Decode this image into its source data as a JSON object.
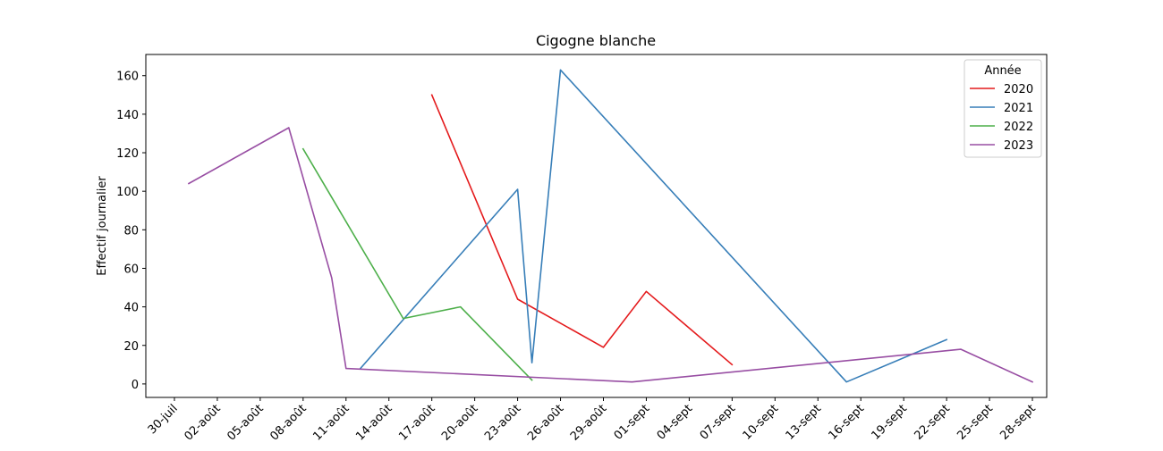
{
  "chart_data": {
    "type": "line",
    "title": "Cigogne blanche",
    "xlabel": "",
    "ylabel": "Effectif journalier",
    "xlim": [
      "2023-07-28",
      "2023-09-29"
    ],
    "ylim": [
      -7,
      171
    ],
    "x_ticks": [
      {
        "date": "2023-07-30",
        "label": "30-juil"
      },
      {
        "date": "2023-08-02",
        "label": "02-août"
      },
      {
        "date": "2023-08-05",
        "label": "05-août"
      },
      {
        "date": "2023-08-08",
        "label": "08-août"
      },
      {
        "date": "2023-08-11",
        "label": "11-août"
      },
      {
        "date": "2023-08-14",
        "label": "14-août"
      },
      {
        "date": "2023-08-17",
        "label": "17-août"
      },
      {
        "date": "2023-08-20",
        "label": "20-août"
      },
      {
        "date": "2023-08-23",
        "label": "23-août"
      },
      {
        "date": "2023-08-26",
        "label": "26-août"
      },
      {
        "date": "2023-08-29",
        "label": "29-août"
      },
      {
        "date": "2023-09-01",
        "label": "01-sept"
      },
      {
        "date": "2023-09-04",
        "label": "04-sept"
      },
      {
        "date": "2023-09-07",
        "label": "07-sept"
      },
      {
        "date": "2023-09-10",
        "label": "10-sept"
      },
      {
        "date": "2023-09-13",
        "label": "13-sept"
      },
      {
        "date": "2023-09-16",
        "label": "16-sept"
      },
      {
        "date": "2023-09-19",
        "label": "19-sept"
      },
      {
        "date": "2023-09-22",
        "label": "22-sept"
      },
      {
        "date": "2023-09-25",
        "label": "25-sept"
      },
      {
        "date": "2023-09-28",
        "label": "28-sept"
      }
    ],
    "y_ticks": [
      0,
      20,
      40,
      60,
      80,
      100,
      120,
      140,
      160
    ],
    "grid": false,
    "legend": {
      "title": "Année",
      "placement": "top-right"
    },
    "series": [
      {
        "name": "2020",
        "color": "#e41a1c",
        "points": [
          {
            "x": "2023-08-17",
            "y": 150
          },
          {
            "x": "2023-08-23",
            "y": 44
          },
          {
            "x": "2023-08-29",
            "y": 19
          },
          {
            "x": "2023-09-01",
            "y": 48
          },
          {
            "x": "2023-09-07",
            "y": 10
          }
        ]
      },
      {
        "name": "2021",
        "color": "#377eb8",
        "points": [
          {
            "x": "2023-08-12",
            "y": 8
          },
          {
            "x": "2023-08-23",
            "y": 101
          },
          {
            "x": "2023-08-24",
            "y": 11
          },
          {
            "x": "2023-08-26",
            "y": 163
          },
          {
            "x": "2023-09-15",
            "y": 1
          },
          {
            "x": "2023-09-22",
            "y": 23
          }
        ]
      },
      {
        "name": "2022",
        "color": "#4daf4a",
        "points": [
          {
            "x": "2023-08-08",
            "y": 122
          },
          {
            "x": "2023-08-15",
            "y": 34
          },
          {
            "x": "2023-08-19",
            "y": 40
          },
          {
            "x": "2023-08-24",
            "y": 2
          }
        ]
      },
      {
        "name": "2023",
        "color": "#984ea3",
        "points": [
          {
            "x": "2023-07-31",
            "y": 104
          },
          {
            "x": "2023-08-07",
            "y": 133
          },
          {
            "x": "2023-08-10",
            "y": 55
          },
          {
            "x": "2023-08-11",
            "y": 8
          },
          {
            "x": "2023-08-31",
            "y": 1
          },
          {
            "x": "2023-09-23",
            "y": 18
          },
          {
            "x": "2023-09-28",
            "y": 1
          }
        ]
      }
    ]
  }
}
